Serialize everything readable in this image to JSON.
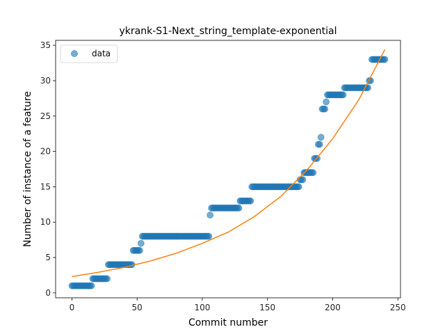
{
  "chart_data": {
    "type": "scatter",
    "title": "ykrank-S1-Next_string_template-exponential",
    "xlabel": "Commit number",
    "ylabel": "Number of instance of a feature",
    "xlim": [
      -12.5,
      252
    ],
    "ylim": [
      -0.7,
      35.7
    ],
    "xticks": [
      0,
      50,
      100,
      150,
      200,
      250
    ],
    "yticks": [
      0,
      5,
      10,
      15,
      20,
      25,
      30,
      35
    ],
    "grid": false,
    "legend": {
      "entries": [
        "data"
      ],
      "placement": "top-left"
    },
    "colors": {
      "data": "#1f77b4",
      "fit": "#ff7f0e"
    },
    "data_series": {
      "name": "data",
      "runs": [
        {
          "from": 0,
          "to": 15,
          "y": 1
        },
        {
          "from": 16,
          "to": 27,
          "y": 2
        },
        {
          "from": 28,
          "to": 46,
          "y": 4
        },
        {
          "from": 47,
          "to": 52,
          "y": 6
        },
        {
          "from": 53,
          "to": 53,
          "y": 7
        },
        {
          "from": 54,
          "to": 105,
          "y": 8
        },
        {
          "from": 106,
          "to": 106,
          "y": 11
        },
        {
          "from": 107,
          "to": 128,
          "y": 12
        },
        {
          "from": 129,
          "to": 137,
          "y": 13
        },
        {
          "from": 138,
          "to": 174,
          "y": 15
        },
        {
          "from": 175,
          "to": 177,
          "y": 16
        },
        {
          "from": 178,
          "to": 185,
          "y": 17
        },
        {
          "from": 186,
          "to": 188,
          "y": 19
        },
        {
          "from": 189,
          "to": 190,
          "y": 21
        },
        {
          "from": 191,
          "to": 191,
          "y": 22
        },
        {
          "from": 192,
          "to": 194,
          "y": 26
        },
        {
          "from": 195,
          "to": 195,
          "y": 27
        },
        {
          "from": 196,
          "to": 208,
          "y": 28
        },
        {
          "from": 209,
          "to": 227,
          "y": 29
        },
        {
          "from": 228,
          "to": 229,
          "y": 30
        },
        {
          "from": 230,
          "to": 240,
          "y": 33
        }
      ]
    },
    "fit_series": {
      "type": "exponential",
      "x": [
        0,
        20,
        40,
        60,
        80,
        100,
        120,
        140,
        160,
        180,
        200,
        220,
        240
      ],
      "y": [
        2.3,
        2.9,
        3.6,
        4.5,
        5.6,
        7.0,
        8.6,
        10.8,
        13.6,
        17.3,
        21.8,
        27.3,
        34.4
      ]
    }
  }
}
